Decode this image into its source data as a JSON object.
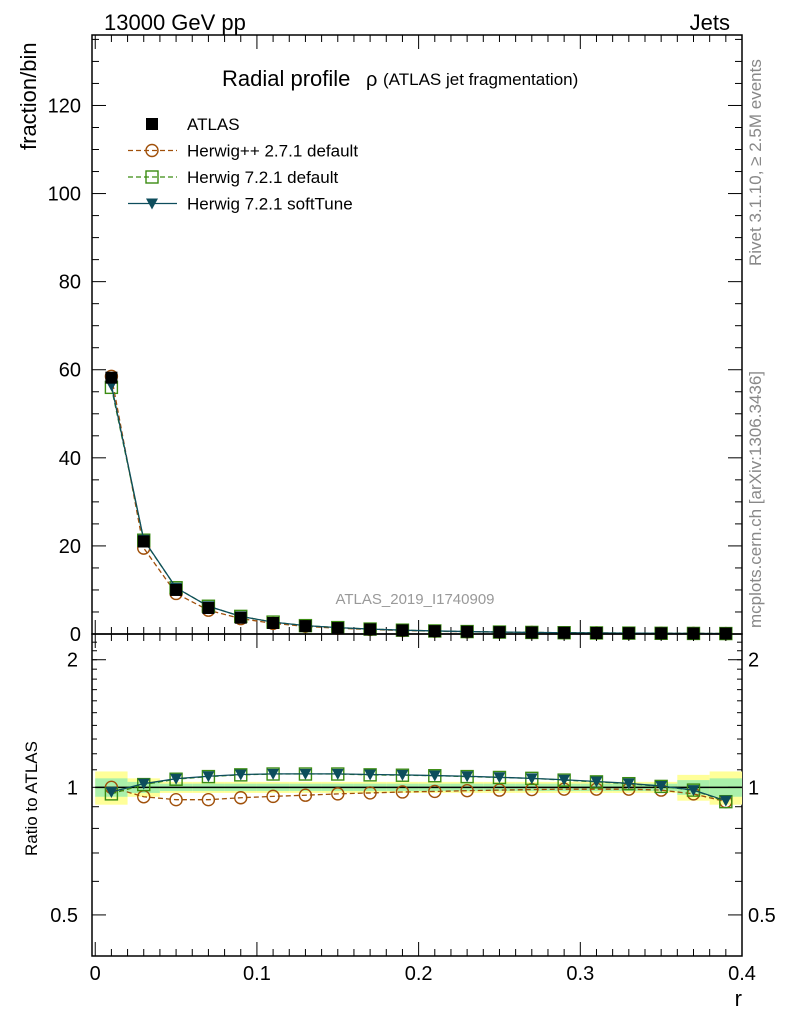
{
  "header": {
    "left_label": "13000 GeV pp",
    "right_label": "Jets"
  },
  "side_labels": {
    "rivet": "Rivet 3.1.10, ≥ 2.5M events",
    "mcplots": "mcplots.cern.ch [arXiv:1306.3436]"
  },
  "chart_data": [
    {
      "type": "line",
      "title_main": "Radial profile",
      "title_symbol": "ρ",
      "title_sub": "(ATLAS jet fragmentation)",
      "watermark": "ATLAS_2019_I1740909",
      "ylabel": "fraction/bin",
      "xlabel": "r",
      "xlim": [
        -0.002,
        0.4
      ],
      "ylim": [
        0,
        136
      ],
      "y_ticks": [
        0,
        20,
        40,
        60,
        80,
        100,
        120
      ],
      "x": [
        0.01,
        0.03,
        0.05,
        0.07,
        0.09,
        0.11,
        0.13,
        0.15,
        0.17,
        0.19,
        0.21,
        0.23,
        0.25,
        0.27,
        0.29,
        0.31,
        0.33,
        0.35,
        0.37,
        0.39
      ],
      "series": [
        {
          "name": "ATLAS",
          "marker": "square-filled",
          "color": "#000000",
          "values": [
            58.2,
            21.0,
            10.0,
            5.9,
            3.7,
            2.5,
            1.8,
            1.35,
            1.05,
            0.82,
            0.65,
            0.52,
            0.42,
            0.34,
            0.28,
            0.23,
            0.19,
            0.16,
            0.13,
            0.11
          ]
        },
        {
          "name": "Herwig++ 2.7.1 default",
          "marker": "circle-open",
          "color": "#a0500a",
          "values": [
            58.5,
            19.5,
            9.2,
            5.4,
            3.5,
            2.4,
            1.75,
            1.3,
            1.02,
            0.8,
            0.64,
            0.51,
            0.42,
            0.34,
            0.28,
            0.23,
            0.19,
            0.16,
            0.13,
            0.1
          ]
        },
        {
          "name": "Herwig 7.2.1 default",
          "marker": "square-open",
          "color": "#3b8c12",
          "values": [
            56.0,
            21.3,
            10.5,
            6.3,
            4.0,
            2.7,
            1.9,
            1.45,
            1.12,
            0.87,
            0.69,
            0.55,
            0.44,
            0.36,
            0.29,
            0.24,
            0.2,
            0.16,
            0.13,
            0.1
          ]
        },
        {
          "name": "Herwig 7.2.1 softTune",
          "marker": "triangle-down-filled",
          "color": "#0d4d5c",
          "values": [
            56.5,
            21.4,
            10.5,
            6.3,
            4.0,
            2.7,
            1.9,
            1.45,
            1.12,
            0.87,
            0.69,
            0.55,
            0.44,
            0.36,
            0.29,
            0.24,
            0.2,
            0.16,
            0.13,
            0.1
          ]
        }
      ]
    },
    {
      "type": "line",
      "ylabel": "Ratio to ATLAS",
      "xlabel": "r",
      "yscale": "log",
      "xlim": [
        -0.002,
        0.4
      ],
      "ylim": [
        0.4,
        2.3
      ],
      "y_ticks": [
        0.5,
        1,
        2
      ],
      "x_ticks": [
        0,
        0.1,
        0.2,
        0.3,
        0.4
      ],
      "x_tick_labels": [
        "0",
        "0.1",
        "0.2",
        "0.3",
        "0.4"
      ],
      "y_tick_labels": [
        "0.5",
        "1",
        "2"
      ],
      "band_colors": {
        "inner": "#aaf0aa",
        "outer": "#ffff99"
      },
      "bands": {
        "x_edges": [
          0.0,
          0.02,
          0.04,
          0.06,
          0.08,
          0.1,
          0.12,
          0.14,
          0.16,
          0.18,
          0.2,
          0.22,
          0.24,
          0.26,
          0.28,
          0.3,
          0.32,
          0.34,
          0.36,
          0.38,
          0.4
        ],
        "inner_half": [
          0.05,
          0.03,
          0.02,
          0.02,
          0.02,
          0.02,
          0.02,
          0.02,
          0.02,
          0.02,
          0.02,
          0.02,
          0.02,
          0.02,
          0.02,
          0.02,
          0.02,
          0.02,
          0.04,
          0.05
        ],
        "outer_half": [
          0.09,
          0.05,
          0.03,
          0.03,
          0.03,
          0.03,
          0.03,
          0.03,
          0.03,
          0.03,
          0.03,
          0.03,
          0.03,
          0.03,
          0.03,
          0.03,
          0.03,
          0.03,
          0.07,
          0.09
        ]
      },
      "series": [
        {
          "name": "Herwig++ 2.7.1 default",
          "marker": "circle-open",
          "color": "#a0500a",
          "values": [
            1.0,
            0.95,
            0.935,
            0.935,
            0.945,
            0.952,
            0.958,
            0.965,
            0.97,
            0.975,
            0.978,
            0.982,
            0.985,
            0.988,
            0.99,
            0.99,
            0.99,
            0.985,
            0.965,
            0.925
          ]
        },
        {
          "name": "Herwig 7.2.1 default",
          "marker": "square-open",
          "color": "#3b8c12",
          "values": [
            0.965,
            1.015,
            1.045,
            1.06,
            1.07,
            1.075,
            1.075,
            1.075,
            1.07,
            1.068,
            1.065,
            1.06,
            1.055,
            1.05,
            1.04,
            1.03,
            1.02,
            1.005,
            0.985,
            0.925
          ]
        },
        {
          "name": "Herwig 7.2.1 softTune",
          "marker": "triangle-down-filled",
          "color": "#0d4d5c",
          "values": [
            0.975,
            1.02,
            1.048,
            1.062,
            1.072,
            1.076,
            1.076,
            1.076,
            1.072,
            1.07,
            1.066,
            1.062,
            1.056,
            1.05,
            1.042,
            1.032,
            1.022,
            1.007,
            0.985,
            0.93
          ]
        }
      ]
    }
  ]
}
